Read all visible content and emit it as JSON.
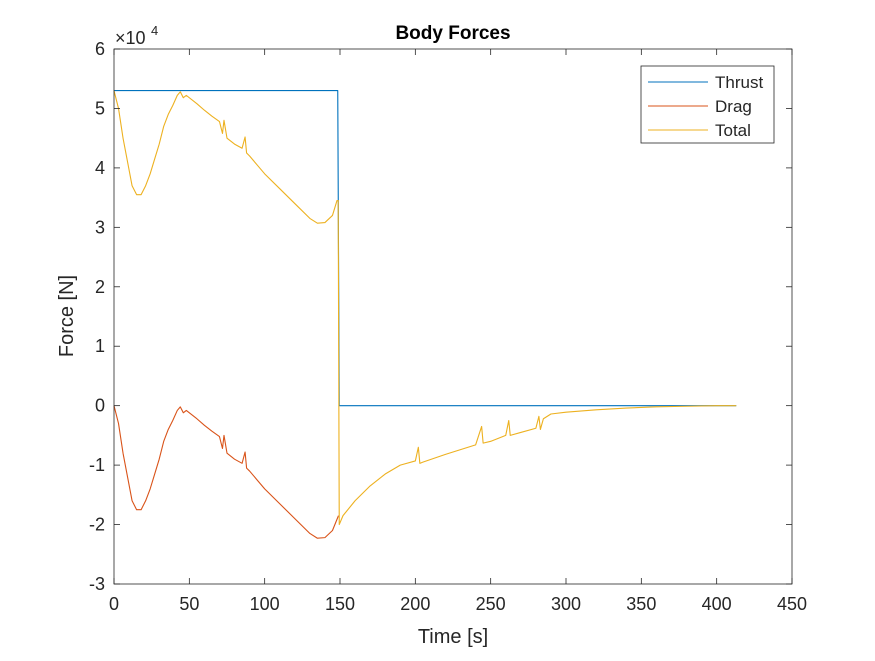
{
  "chart_data": {
    "type": "line",
    "title": "Body Forces",
    "xlabel": "Time [s]",
    "ylabel": "Force [N]",
    "y_exponent_base": "×10",
    "y_exponent_power": "4",
    "xlim": [
      0,
      450
    ],
    "ylim": [
      -3,
      6
    ],
    "y_scale_factor": 10000,
    "x_ticks": [
      0,
      50,
      100,
      150,
      200,
      250,
      300,
      350,
      400,
      450
    ],
    "x_tick_labels": [
      "0",
      "50",
      "100",
      "150",
      "200",
      "250",
      "300",
      "350",
      "400",
      "450"
    ],
    "y_ticks": [
      -3,
      -2,
      -1,
      0,
      1,
      2,
      3,
      4,
      5,
      6
    ],
    "y_tick_labels": [
      "-3",
      "-2",
      "-1",
      "0",
      "1",
      "2",
      "3",
      "4",
      "5",
      "6"
    ],
    "grid": false,
    "legend_position": "top-right",
    "series": [
      {
        "name": "Thrust",
        "color": "#0072BD",
        "x": [
          0,
          148.5,
          149.5,
          150,
          200,
          300,
          413
        ],
        "y": [
          5.3,
          5.3,
          0,
          0,
          0,
          0,
          0
        ]
      },
      {
        "name": "Drag",
        "color": "#D95319",
        "x": [
          0,
          3,
          6,
          9,
          12,
          15,
          18,
          21,
          24,
          27,
          30,
          33,
          36,
          39,
          42,
          44,
          46,
          48,
          55,
          60,
          65,
          70,
          72,
          73,
          75,
          80,
          85,
          87,
          88,
          90,
          95,
          100,
          110,
          120,
          130,
          135,
          140,
          145,
          149
        ],
        "y": [
          0,
          -0.3,
          -0.8,
          -1.2,
          -1.6,
          -1.75,
          -1.75,
          -1.6,
          -1.4,
          -1.15,
          -0.9,
          -0.6,
          -0.4,
          -0.25,
          -0.08,
          -0.02,
          -0.12,
          -0.08,
          -0.22,
          -0.33,
          -0.43,
          -0.52,
          -0.72,
          -0.5,
          -0.8,
          -0.9,
          -0.97,
          -0.78,
          -1.05,
          -1.1,
          -1.25,
          -1.4,
          -1.65,
          -1.9,
          -2.15,
          -2.23,
          -2.22,
          -2.1,
          -1.85
        ]
      },
      {
        "name": "Total",
        "color": "#EDB120",
        "x": [
          0,
          3,
          6,
          9,
          12,
          15,
          18,
          21,
          24,
          27,
          30,
          33,
          36,
          39,
          42,
          44,
          46,
          48,
          55,
          60,
          65,
          70,
          72,
          73,
          75,
          80,
          85,
          87,
          88,
          90,
          95,
          100,
          110,
          120,
          130,
          135,
          140,
          145,
          148,
          148.8,
          149.5,
          152,
          160,
          170,
          180,
          190,
          200,
          202,
          203,
          205,
          220,
          240,
          244,
          245,
          250,
          260,
          262,
          263,
          270,
          280,
          282,
          283,
          285,
          290,
          300,
          320,
          340,
          360,
          380,
          400,
          413
        ],
        "y": [
          5.3,
          5.0,
          4.5,
          4.1,
          3.7,
          3.55,
          3.55,
          3.7,
          3.9,
          4.15,
          4.4,
          4.7,
          4.9,
          5.05,
          5.22,
          5.28,
          5.18,
          5.22,
          5.08,
          4.97,
          4.87,
          4.78,
          4.58,
          4.8,
          4.5,
          4.4,
          4.33,
          4.52,
          4.25,
          4.2,
          4.05,
          3.9,
          3.65,
          3.4,
          3.15,
          3.07,
          3.08,
          3.2,
          3.45,
          3.45,
          -2.0,
          -1.85,
          -1.6,
          -1.35,
          -1.15,
          -1.0,
          -0.93,
          -0.7,
          -0.97,
          -0.95,
          -0.82,
          -0.66,
          -0.35,
          -0.63,
          -0.6,
          -0.5,
          -0.25,
          -0.5,
          -0.45,
          -0.38,
          -0.18,
          -0.4,
          -0.22,
          -0.14,
          -0.11,
          -0.07,
          -0.04,
          -0.02,
          -0.01,
          0,
          0
        ]
      }
    ]
  }
}
